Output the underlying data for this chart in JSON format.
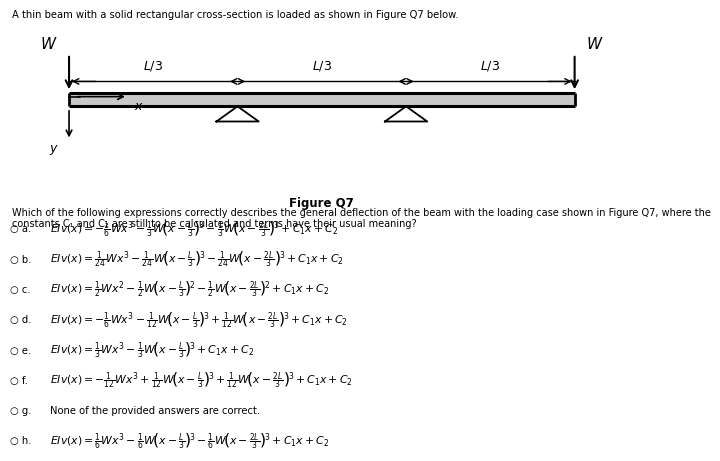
{
  "title_text": "A thin beam with a solid rectangular cross-section is loaded as shown in Figure Q7 below.",
  "figure_caption": "Figure Q7",
  "question_line1": "Which of the following expressions correctly describes the general deflection of the beam with the loading case shown in Figure Q7, where the",
  "question_line2": "constants C₁ and C₂ are still to be calculated and terms have their usual meaning?",
  "bg_color": "#ffffff",
  "text_color": "#000000"
}
